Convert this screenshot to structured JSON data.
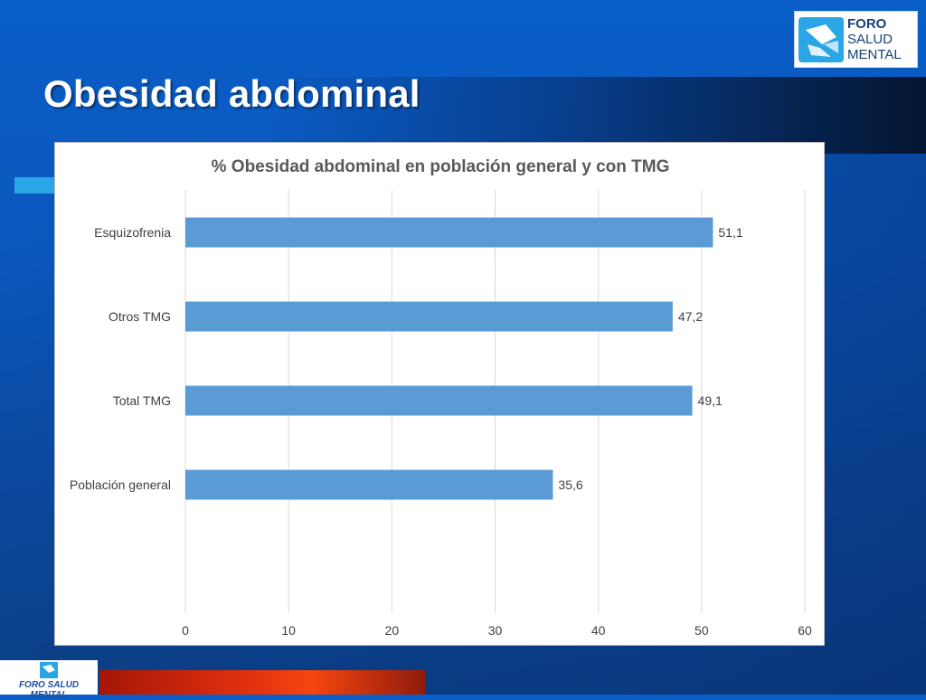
{
  "slide": {
    "title": "Obesidad abdominal"
  },
  "logo_top": {
    "line1": "FORO",
    "line2": "SALUD",
    "line3": "MENTAL",
    "icon": "foro-salud-mental-logo-icon"
  },
  "logo_bottom": {
    "text": "FORO SALUD MENTAL",
    "icon": "foro-salud-mental-logo-icon"
  },
  "colors": {
    "background": "#0a5ec8",
    "bar": "#5b9bd5",
    "accent": "#2aa6e6",
    "bottom_bar": "#e0300f"
  },
  "chart_data": {
    "type": "bar",
    "orientation": "horizontal",
    "title": "% Obesidad abdominal en población general y con TMG",
    "categories": [
      "Esquizofrenia",
      "Otros TMG",
      "Total TMG",
      "Población general"
    ],
    "values": [
      51.1,
      47.2,
      49.1,
      35.6
    ],
    "value_labels": [
      "51,1",
      "47,2",
      "49,1",
      "35,6"
    ],
    "xlim": [
      0,
      60
    ],
    "xticks": [
      0,
      10,
      20,
      30,
      40,
      50,
      60
    ],
    "xlabel": "",
    "ylabel": "",
    "grid": true,
    "legend": "none",
    "bar_color": "#5b9bd5"
  }
}
